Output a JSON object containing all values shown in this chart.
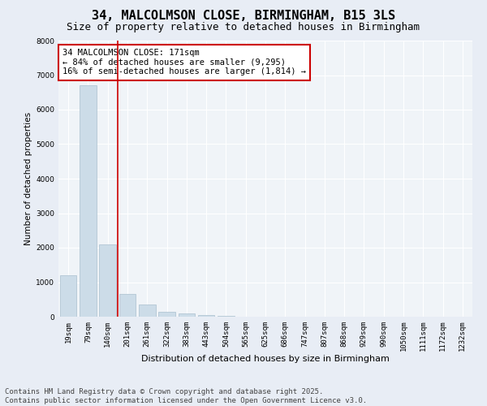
{
  "title1": "34, MALCOLMSON CLOSE, BIRMINGHAM, B15 3LS",
  "title2": "Size of property relative to detached houses in Birmingham",
  "xlabel": "Distribution of detached houses by size in Birmingham",
  "ylabel": "Number of detached properties",
  "bar_labels": [
    "19sqm",
    "79sqm",
    "140sqm",
    "201sqm",
    "261sqm",
    "322sqm",
    "383sqm",
    "443sqm",
    "504sqm",
    "565sqm",
    "625sqm",
    "686sqm",
    "747sqm",
    "807sqm",
    "868sqm",
    "929sqm",
    "990sqm",
    "1050sqm",
    "1111sqm",
    "1172sqm",
    "1232sqm"
  ],
  "bar_values": [
    1200,
    6700,
    2100,
    650,
    350,
    150,
    100,
    50,
    30,
    5,
    0,
    0,
    0,
    0,
    0,
    0,
    0,
    0,
    0,
    0,
    0
  ],
  "bar_color": "#ccdce8",
  "bar_edge_color": "#aabfcf",
  "vline_color": "#cc0000",
  "annotation_box_text": "34 MALCOLMSON CLOSE: 171sqm\n← 84% of detached houses are smaller (9,295)\n16% of semi-detached houses are larger (1,814) →",
  "ylim": [
    0,
    8000
  ],
  "yticks": [
    0,
    1000,
    2000,
    3000,
    4000,
    5000,
    6000,
    7000,
    8000
  ],
  "bg_color": "#e8edf5",
  "plot_bg_color": "#f0f4f8",
  "footer_text": "Contains HM Land Registry data © Crown copyright and database right 2025.\nContains public sector information licensed under the Open Government Licence v3.0.",
  "title1_fontsize": 11,
  "title2_fontsize": 9,
  "annotation_fontsize": 7.5,
  "footer_fontsize": 6.5,
  "tick_fontsize": 6.5,
  "ylabel_fontsize": 7.5,
  "xlabel_fontsize": 8
}
